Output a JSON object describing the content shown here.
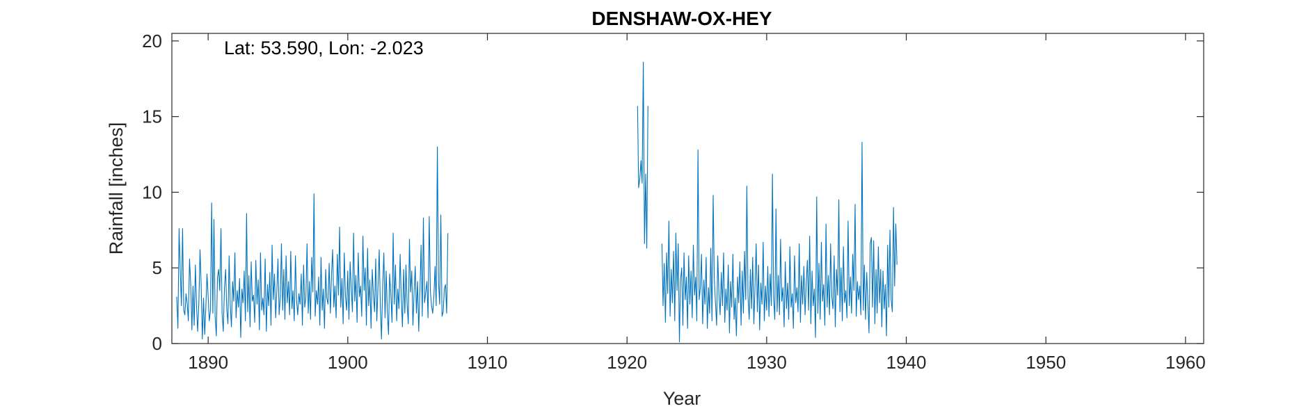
{
  "chart_data": {
    "type": "line",
    "title": "DENSHAW-OX-HEY",
    "annotation": "Lat: 53.590, Lon: -2.023",
    "xlabel": "Year",
    "ylabel": "Rainfall [inches]",
    "xlim": [
      1887.4,
      1961.3
    ],
    "ylim": [
      0,
      20.5
    ],
    "xticks": [
      1890,
      1900,
      1910,
      1920,
      1930,
      1940,
      1950,
      1960
    ],
    "yticks": [
      0,
      5,
      10,
      15,
      20
    ],
    "line_color": "#0072BD",
    "series": [
      {
        "start_year": 1887.75,
        "step": 0.08333,
        "segments": [
          {
            "start": 1887.75,
            "values": [
              3.1,
              1.0,
              7.6,
              4.9,
              2.5,
              7.6,
              2.2,
              1.9,
              3.3,
              2.6,
              1.5,
              5.6,
              3.9,
              0.9,
              3.8,
              1.2,
              5.2,
              2.4,
              0.8,
              2.7,
              6.2,
              3.9,
              0.3,
              3.0,
              0.6,
              2.3,
              4.6,
              3.1,
              1.5,
              2.2,
              9.3,
              2.0,
              8.2,
              1.8,
              0.5,
              4.4,
              4.9,
              3.5,
              7.6,
              2.0,
              0.8,
              3.7,
              4.9,
              2.3,
              1.3,
              5.8,
              2.6,
              1.1,
              4.1,
              2.8,
              6.0,
              1.7,
              3.5,
              2.4,
              4.3,
              0.4,
              3.6,
              2.7,
              4.8,
              1.5,
              8.6,
              2.1,
              4.5,
              1.1,
              5.4,
              2.8,
              3.2,
              1.4,
              5.5,
              2.6,
              4.2,
              0.9,
              6.0,
              2.2,
              3.0,
              1.9,
              5.6,
              0.8,
              3.9,
              2.5,
              4.7,
              1.2,
              6.5,
              2.9,
              4.6,
              1.7,
              3.4,
              5.6,
              1.9,
              3.1,
              6.6,
              2.2,
              4.9,
              1.6,
              5.8,
              2.7,
              4.1,
              1.9,
              6.1,
              2.3,
              3.5,
              1.5,
              5.8,
              2.8,
              1.9,
              3.3,
              2.6,
              4.6,
              1.2,
              5.2,
              2.4,
              3.0,
              6.6,
              2.0,
              4.1,
              1.6,
              5.7,
              3.4,
              9.9,
              1.8,
              3.5,
              2.6,
              4.4,
              1.2,
              5.7,
              2.2,
              3.6,
              1.0,
              4.9,
              3.0,
              2.6,
              5.3,
              2.0,
              4.5,
              6.2,
              2.4,
              3.8,
              1.7,
              5.9,
              3.2,
              7.7,
              2.4,
              4.3,
              1.3,
              6.0,
              3.1,
              2.2,
              4.8,
              1.6,
              5.4,
              3.6,
              2.1,
              7.3,
              2.8,
              4.5,
              1.4,
              6.0,
              3.1,
              3.8,
              1.8,
              7.1,
              3.5,
              5.0,
              1.2,
              6.3,
              2.5,
              4.2,
              1.0,
              4.9,
              3.3,
              2.1,
              5.6,
              1.5,
              3.8,
              6.2,
              2.4,
              0.3,
              3.8,
              6.0,
              1.7,
              4.8,
              2.1,
              0.6,
              4.6,
              3.3,
              1.4,
              7.3,
              2.6,
              5.2,
              1.5,
              3.6,
              2.3,
              5.9,
              2.9,
              1.1,
              4.9,
              2.0,
              5.2,
              2.6,
              1.3,
              6.9,
              3.4,
              4.8,
              1.2,
              3.5,
              5.1,
              2.0,
              4.1,
              0.8,
              3.4,
              6.5,
              1.8,
              8.3,
              2.7,
              3.4,
              4.1,
              1.7,
              8.4,
              3.4,
              2.5,
              2.0,
              3.1,
              5.1,
              2.5,
              13.0,
              4.0,
              2.6,
              8.5,
              1.8,
              2.1,
              3.6,
              3.9,
              2.0,
              7.3
            ]
          },
          {
            "start": 1920.75,
            "values": [
              15.7,
              10.3,
              10.9,
              12.1,
              10.6,
              18.6,
              6.6,
              11.2,
              6.3,
              15.7
            ]
          },
          {
            "start": 1922.5,
            "values": [
              6.6,
              2.5,
              5.3,
              1.4,
              6.0,
              3.3,
              8.1,
              1.8,
              4.9,
              2.7,
              6.1,
              1.5,
              7.3,
              3.5,
              6.6,
              0.1,
              4.2,
              5.0,
              1.2,
              6.0,
              2.9,
              4.4,
              1.0,
              5.8,
              2.6,
              4.8,
              1.7,
              6.5,
              3.2,
              4.4,
              1.5,
              12.8,
              2.9,
              3.7,
              5.9,
              1.3,
              4.2,
              2.6,
              5.7,
              1.0,
              3.7,
              2.0,
              6.3,
              1.5,
              9.8,
              4.4,
              2.7,
              1.2,
              5.8,
              3.3,
              1.9,
              4.7,
              2.5,
              6.0,
              1.4,
              3.6,
              2.2,
              5.2,
              0.7,
              4.1,
              2.4,
              5.9,
              1.6,
              3.0,
              0.5,
              4.4,
              2.7,
              5.4,
              1.2,
              4.8,
              2.0,
              6.1,
              2.9,
              10.4,
              3.1,
              1.6,
              4.9,
              2.3,
              5.7,
              1.3,
              3.9,
              6.6,
              2.1,
              5.2,
              0.9,
              4.0,
              2.6,
              6.7,
              1.5,
              3.8,
              2.2,
              5.1,
              1.8,
              4.6,
              2.5,
              11.2,
              3.0,
              1.6,
              8.9,
              2.1,
              4.5,
              1.9,
              6.9,
              2.8,
              3.7,
              1.1,
              5.4,
              2.3,
              4.0,
              1.6,
              6.4,
              2.4,
              3.3,
              1.0,
              5.8,
              2.7,
              3.7,
              2.1,
              6.6,
              1.4,
              4.5,
              2.6,
              5.1,
              1.9,
              3.9,
              5.5,
              2.2,
              7.1,
              1.3,
              4.8,
              2.5,
              3.6,
              0.4,
              9.7,
              2.0,
              5.3,
              1.6,
              6.7,
              2.8,
              3.9,
              1.2,
              7.9,
              2.4,
              4.5,
              1.9,
              6.6,
              3.1,
              2.3,
              5.8,
              1.1,
              4.9,
              3.2,
              9.5,
              2.1,
              5.0,
              1.5,
              6.4,
              2.7,
              3.5,
              1.7,
              8.1,
              2.5,
              4.4,
              2.0,
              5.9,
              3.5,
              9.2,
              1.8,
              4.1,
              2.9,
              3.8,
              1.9,
              13.3,
              2.2,
              5.2,
              1.6,
              4.7,
              2.6,
              0.7,
              6.6,
              7.0,
              2.4,
              6.8,
              1.3,
              4.9,
              2.0,
              6.4,
              2.7,
              4.9,
              1.1,
              4.8,
              2.3,
              3.9,
              0.5,
              6.5,
              2.4,
              7.5,
              2.9,
              2.1,
              9.0,
              3.8,
              7.9,
              5.2
            ]
          }
        ]
      }
    ]
  }
}
